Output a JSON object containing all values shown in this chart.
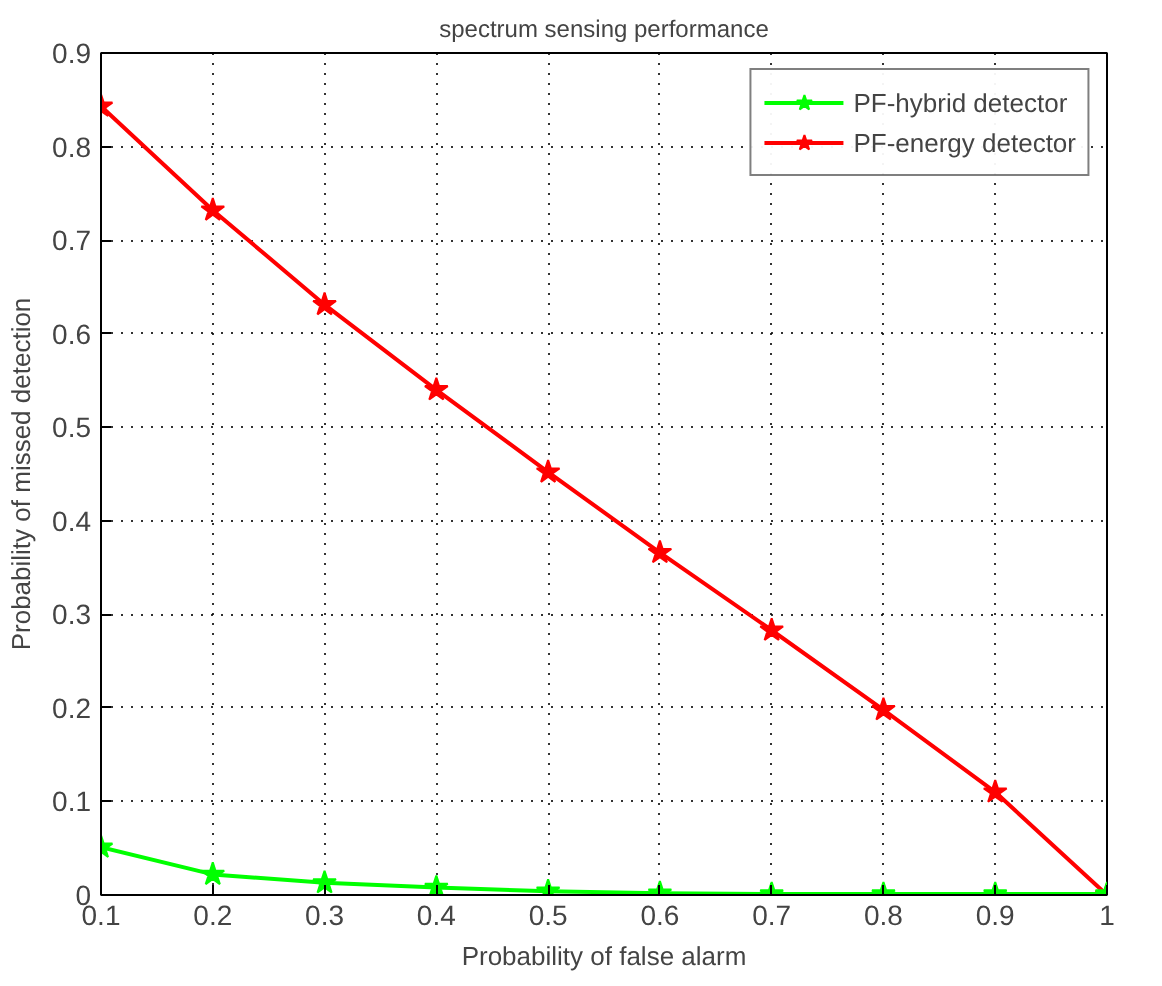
{
  "chart_data": {
    "type": "line",
    "title": "spectrum sensing performance",
    "xlabel": "Probability of false alarm",
    "ylabel": "Probability of missed detection",
    "x": [
      0.1,
      0.2,
      0.3,
      0.4,
      0.5,
      0.6,
      0.7,
      0.8,
      0.9,
      1.0
    ],
    "series": [
      {
        "name": "PF-hybrid detector",
        "color": "#00ff00",
        "values": [
          0.051,
          0.022,
          0.013,
          0.008,
          0.004,
          0.002,
          0.001,
          0.001,
          0.001,
          0.001
        ]
      },
      {
        "name": "PF-energy detector",
        "color": "#ff0000",
        "values": [
          0.843,
          0.732,
          0.631,
          0.54,
          0.452,
          0.366,
          0.283,
          0.198,
          0.11,
          0.0
        ]
      }
    ],
    "xlim": [
      0.1,
      1.0
    ],
    "ylim": [
      0,
      0.9
    ],
    "xticks": [
      0.1,
      0.2,
      0.3,
      0.4,
      0.5,
      0.6,
      0.7,
      0.8,
      0.9,
      {
        "value": 1.0,
        "label": "1"
      }
    ],
    "yticks": [
      {
        "value": 0,
        "label": "0"
      },
      0.1,
      0.2,
      0.3,
      0.4,
      0.5,
      0.6,
      0.7,
      0.8,
      0.9
    ],
    "grid": true,
    "legend": "top right",
    "marker": "star",
    "line_style": "solid"
  }
}
